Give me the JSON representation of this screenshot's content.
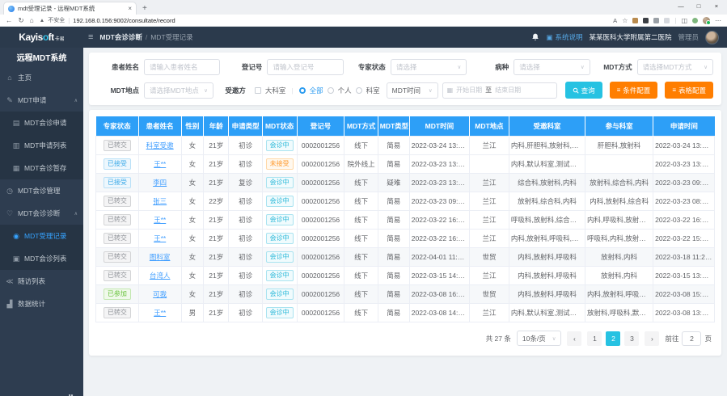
{
  "browser": {
    "tab_title": "mdt受理记录 - 远程MDT系统",
    "security": "不安全",
    "url": "192.168.0.156:9002/consultate/record"
  },
  "icons": {
    "back": "←",
    "refresh": "↻",
    "home": "⌂",
    "warning": "▲",
    "star": "☆",
    "read_aloud": "A",
    "split": "◫",
    "more": "⋯",
    "plus": "+",
    "minimize": "—",
    "maximize": "□",
    "close": "×",
    "caret_down": "∨",
    "caret_up": "∧",
    "calendar": "▦",
    "config": "≡",
    "hamburger": "≡",
    "help_box": "▣",
    "url_sep": "|"
  },
  "header": {
    "breadcrumb_section": "MDT会诊诊断",
    "breadcrumb_sep": "/",
    "breadcrumb_page": "MDT受理记录",
    "system_help": "系统说明",
    "hospital": "某某医科大学附属第二医院",
    "role": "管理员"
  },
  "sidebar": {
    "logo_main": "Kayis",
    "logo_o": "o",
    "logo_rest": "ft",
    "logo_suffix": "卡易",
    "title": "远程MDT系统",
    "items": [
      {
        "key": "home",
        "label": "主页",
        "icon": "home-icon",
        "level": "top"
      },
      {
        "key": "mdt-apply",
        "label": "MDT申请",
        "icon": "edit-icon",
        "level": "top",
        "expanded": true
      },
      {
        "key": "mdt-consult-apply",
        "label": "MDT会诊申请",
        "icon": "doc-icon",
        "level": "sub"
      },
      {
        "key": "mdt-apply-list",
        "label": "MDT申请列表",
        "icon": "list-icon",
        "level": "sub"
      },
      {
        "key": "mdt-consult-draft",
        "label": "MDT会诊暂存",
        "icon": "grid-icon",
        "level": "sub"
      },
      {
        "key": "mdt-consult-manage",
        "label": "MDT会诊管理",
        "icon": "clock-icon",
        "level": "top"
      },
      {
        "key": "mdt-consult-diagnose",
        "label": "MDT会诊诊断",
        "icon": "heart-icon",
        "level": "top",
        "expanded": true
      },
      {
        "key": "mdt-accept-record",
        "label": "MDT受理记录",
        "icon": "user-icon",
        "level": "sub",
        "active": true
      },
      {
        "key": "mdt-consult-list",
        "label": "MDT会诊列表",
        "icon": "shield-icon",
        "level": "sub"
      },
      {
        "key": "followup-list",
        "label": "随访列表",
        "icon": "share-icon",
        "level": "top"
      },
      {
        "key": "data-stats",
        "label": "数据统计",
        "icon": "chart-icon",
        "level": "top"
      }
    ]
  },
  "filters": {
    "patient_name": {
      "label": "患者姓名",
      "placeholder": "请输入患者姓名"
    },
    "reg_no": {
      "label": "登记号",
      "placeholder": "请输入登记号"
    },
    "expert_status": {
      "label": "专家状态",
      "placeholder": "请选择"
    },
    "disease": {
      "label": "病种",
      "placeholder": "请选择"
    },
    "mdt_mode": {
      "label": "MDT方式",
      "placeholder": "请选择MDT方式"
    },
    "mdt_location": {
      "label": "MDT地点",
      "placeholder": "请选择MDT地点"
    },
    "invited_party": {
      "label": "受邀方",
      "checkbox_label": "大科室",
      "radio_all": "全部",
      "radio_personal": "个人",
      "radio_dept": "科室",
      "selected": "全部"
    },
    "time_field": {
      "value": "MDT时间"
    },
    "date_range": {
      "start_placeholder": "开始日期",
      "separator": "至",
      "end_placeholder": "结束日期"
    },
    "buttons": {
      "search": "查询",
      "condition_config": "条件配置",
      "table_config": "表格配置"
    }
  },
  "table": {
    "columns": [
      "专家状态",
      "患者姓名",
      "性别",
      "年龄",
      "申请类型",
      "MDT状态",
      "登记号",
      "MDT方式",
      "MDT类型",
      "MDT时间",
      "MDT地点",
      "受邀科室",
      "参与科室",
      "申请时间"
    ],
    "rows": [
      {
        "expert_status": {
          "text": "已转交",
          "type": "gray"
        },
        "name": "科室受邀",
        "gender": "女",
        "age": "21岁",
        "apply_type": "初诊",
        "mdt_status": {
          "text": "会诊中",
          "type": "cyan"
        },
        "reg_no": "0002001256",
        "mode": "线下",
        "mdt_type": "简易",
        "mdt_time": "2022-03-24 13:40:00",
        "location": "兰江",
        "invited": "内科,肝胆科,放射科,综合科",
        "joined": "肝胆科,放射科",
        "apply_time": "2022-03-24 13:37:44"
      },
      {
        "expert_status": {
          "text": "已接受",
          "type": "blue"
        },
        "name": "王**",
        "gender": "女",
        "age": "21岁",
        "apply_type": "初诊",
        "mdt_status": {
          "text": "未接受",
          "type": "orange"
        },
        "reg_no": "0002001256",
        "mode": "院外线上",
        "mdt_type": "简易",
        "mdt_time": "2022-03-23 13:50:00",
        "location": "",
        "invited": "内科,默认科室,测试科室,放射科",
        "joined": "",
        "apply_time": "2022-03-23 13:41:45"
      },
      {
        "expert_status": {
          "text": "已接受",
          "type": "blue"
        },
        "name": "李四",
        "gender": "女",
        "age": "21岁",
        "apply_type": "复诊",
        "mdt_status": {
          "text": "会诊中",
          "type": "cyan"
        },
        "reg_no": "0002001256",
        "mode": "线下",
        "mdt_type": "疑难",
        "mdt_time": "2022-03-23 13:00:00",
        "location": "兰江",
        "invited": "综合科,放射科,内科",
        "joined": "放射科,综合科,内科",
        "apply_time": "2022-03-23 09:35:39",
        "shaded": true
      },
      {
        "expert_status": {
          "text": "已转交",
          "type": "gray"
        },
        "name": "张三",
        "gender": "女",
        "age": "22岁",
        "apply_type": "初诊",
        "mdt_status": {
          "text": "会诊中",
          "type": "cyan"
        },
        "reg_no": "0002001256",
        "mode": "线下",
        "mdt_type": "简易",
        "mdt_time": "2022-03-23 09:20:00",
        "location": "兰江",
        "invited": "放射科,综合科,内科",
        "joined": "内科,放射科,综合科",
        "apply_time": "2022-03-23 08:49:53"
      },
      {
        "expert_status": {
          "text": "已转交",
          "type": "gray"
        },
        "name": "王**",
        "gender": "女",
        "age": "21岁",
        "apply_type": "初诊",
        "mdt_status": {
          "text": "会诊中",
          "type": "cyan"
        },
        "reg_no": "0002001256",
        "mode": "线下",
        "mdt_type": "简易",
        "mdt_time": "2022-03-22 16:40:00",
        "location": "兰江",
        "invited": "呼吸科,放射科,综合科,内科",
        "joined": "内科,呼吸科,放射科,综合科",
        "apply_time": "2022-03-22 16:31:36"
      },
      {
        "expert_status": {
          "text": "已转交",
          "type": "gray"
        },
        "name": "王**",
        "gender": "女",
        "age": "21岁",
        "apply_type": "初诊",
        "mdt_status": {
          "text": "会诊中",
          "type": "cyan"
        },
        "reg_no": "0002001256",
        "mode": "线下",
        "mdt_type": "简易",
        "mdt_time": "2022-03-22 16:50:00",
        "location": "兰江",
        "invited": "内科,放射科,呼吸科,影像科",
        "joined": "呼吸科,内科,放射科,影像科",
        "apply_time": "2022-03-22 15:57:03"
      },
      {
        "expert_status": {
          "text": "已转交",
          "type": "gray"
        },
        "name": "图科室",
        "gender": "女",
        "age": "21岁",
        "apply_type": "初诊",
        "mdt_status": {
          "text": "会诊中",
          "type": "cyan"
        },
        "reg_no": "0002001256",
        "mode": "线下",
        "mdt_type": "简易",
        "mdt_time": "2022-04-01 11:00:00",
        "location": "世贸",
        "invited": "内科,放射科,呼吸科",
        "joined": "放射科,内科",
        "apply_time": "2022-03-18 11:28:25",
        "shaded": true
      },
      {
        "expert_status": {
          "text": "已转交",
          "type": "gray"
        },
        "name": "台湾人",
        "gender": "女",
        "age": "21岁",
        "apply_type": "初诊",
        "mdt_status": {
          "text": "会诊中",
          "type": "cyan"
        },
        "reg_no": "0002001256",
        "mode": "线下",
        "mdt_type": "简易",
        "mdt_time": "2022-03-15 14:00:00",
        "location": "兰江",
        "invited": "内科,放射科,呼吸科",
        "joined": "放射科,内科",
        "apply_time": "2022-03-15 13:10:26"
      },
      {
        "expert_status": {
          "text": "已参加",
          "type": "green"
        },
        "name": "可我",
        "gender": "女",
        "age": "21岁",
        "apply_type": "初诊",
        "mdt_status": {
          "text": "会诊中",
          "type": "cyan"
        },
        "reg_no": "0002001256",
        "mode": "线下",
        "mdt_type": "简易",
        "mdt_time": "2022-03-08 16:00:00",
        "location": "世贸",
        "invited": "内科,放射科,呼吸科",
        "joined": "内科,放射科,呼吸科,测试科室",
        "apply_time": "2022-03-08 15:24:58",
        "shaded": true
      },
      {
        "expert_status": {
          "text": "已转交",
          "type": "gray"
        },
        "name": "王**",
        "gender": "男",
        "age": "21岁",
        "apply_type": "初诊",
        "mdt_status": {
          "text": "会诊中",
          "type": "cyan"
        },
        "reg_no": "0002001256",
        "mode": "线下",
        "mdt_type": "简易",
        "mdt_time": "2022-03-08 14:10:00",
        "location": "兰江",
        "invited": "内科,默认科室,测试科室",
        "joined": "放射科,呼吸科,默认科室,测...",
        "apply_time": "2022-03-08 13:06:56"
      }
    ]
  },
  "pagination": {
    "total": "共 27 条",
    "page_size": "10条/页",
    "prev": "‹",
    "next": "›",
    "pages": [
      "1",
      "2",
      "3"
    ],
    "current": "2",
    "goto_label": "前往",
    "goto_value": "2",
    "goto_unit": "页"
  }
}
